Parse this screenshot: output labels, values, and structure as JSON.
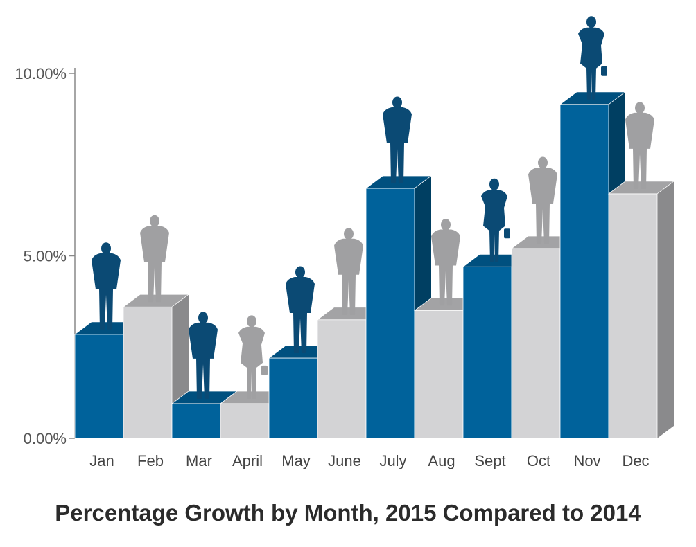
{
  "chart_data": {
    "type": "bar",
    "title": "Percentage Growth by Month, 2015 Compared to 2014",
    "xlabel": "",
    "ylabel": "",
    "categories": [
      "Jan",
      "Feb",
      "Mar",
      "April",
      "May",
      "June",
      "July",
      "Aug",
      "Sept",
      "Oct",
      "Nov",
      "Dec"
    ],
    "values": [
      2.85,
      3.6,
      0.95,
      0.95,
      2.2,
      3.25,
      6.85,
      3.5,
      4.7,
      5.2,
      9.15,
      6.7
    ],
    "ylim": [
      0,
      10
    ],
    "yticks": [
      0,
      5,
      10
    ],
    "ytick_labels": [
      "0.00%",
      "5.00%",
      "10.00%"
    ],
    "grid": false,
    "style": "3d-columns-with-person-silhouettes",
    "colors": {
      "blue_front": "#00629b",
      "blue_top": "#00507f",
      "blue_side": "#003f62",
      "gray_front": "#d3d3d5",
      "gray_top": "#a3a3a5",
      "gray_side": "#8a8a8c",
      "figure_blue": "#0b4a74",
      "figure_gray": "#a0a0a2",
      "axis": "#888888"
    },
    "bar_color_pattern": [
      "blue",
      "gray",
      "blue",
      "gray",
      "blue",
      "gray",
      "blue",
      "gray",
      "blue",
      "gray",
      "blue",
      "gray"
    ],
    "figure_icons": [
      "man-icon",
      "man-icon",
      "man-icon",
      "woman-icon",
      "man-icon",
      "man-icon",
      "man-icon",
      "man-icon",
      "woman-icon",
      "man-icon",
      "woman-icon",
      "man-icon"
    ]
  }
}
